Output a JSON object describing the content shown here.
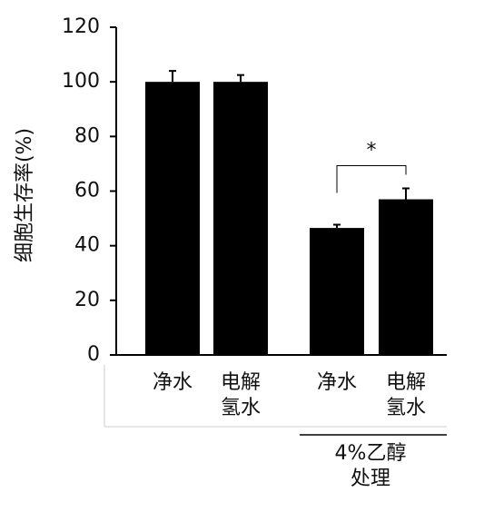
{
  "chart_data": {
    "type": "bar",
    "y_label": "细胞生存率(%)",
    "categories": [
      "净水",
      "电解氢水",
      "净水",
      "电解氢水"
    ],
    "values": [
      100,
      100,
      46.5,
      57
    ],
    "errors": [
      4,
      2.5,
      1.2,
      4
    ],
    "color": "#000000",
    "group_label": "4%乙醇处理",
    "significance": "*",
    "ylim": [
      0,
      120
    ],
    "yticks": [
      0,
      20,
      40,
      60,
      80,
      100,
      120
    ]
  }
}
